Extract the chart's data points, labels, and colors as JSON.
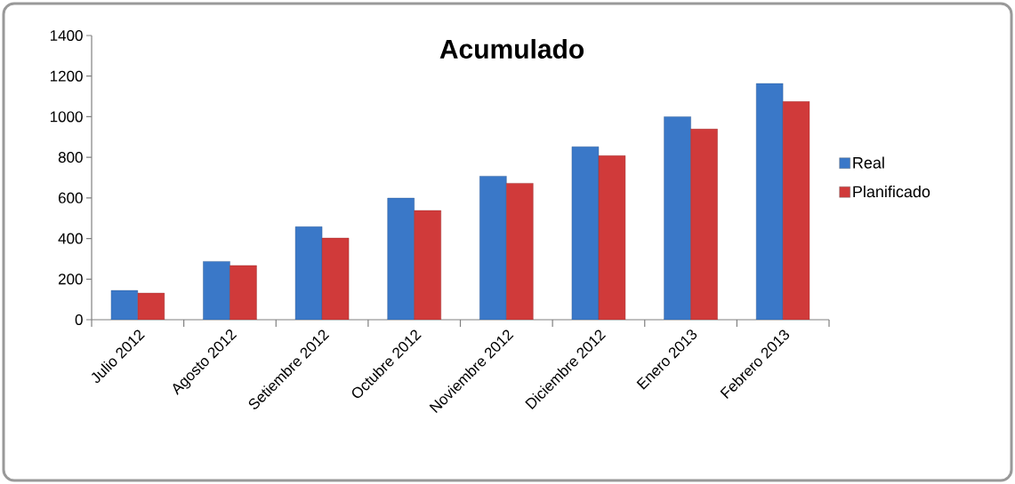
{
  "chart_data": {
    "type": "bar",
    "title": "Acumulado",
    "categories": [
      "Julio 2012",
      "Agosto 2012",
      "Setiembre 2012",
      "Octubre 2012",
      "Noviembre 2012",
      "Diciembre 2012",
      "Enero 2013",
      "Febrero 2013"
    ],
    "series": [
      {
        "name": "Real",
        "color": "#3a78c8",
        "values": [
          144,
          287,
          458,
          599,
          707,
          852,
          1000,
          1164
        ]
      },
      {
        "name": "Planificado",
        "color": "#d03a3a",
        "values": [
          131,
          267,
          402,
          538,
          672,
          808,
          939,
          1075
        ]
      }
    ],
    "ylim": [
      0,
      1400
    ],
    "yticks": [
      0,
      200,
      400,
      600,
      800,
      1000,
      1200,
      1400
    ],
    "legend": "right"
  }
}
